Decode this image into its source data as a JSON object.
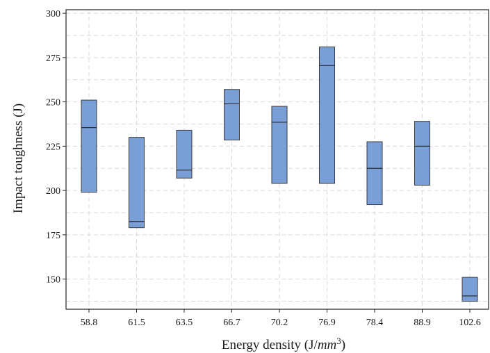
{
  "chart_data": {
    "type": "box",
    "xlabel": "Energy density (J/",
    "xlabel_unit": "mm",
    "xlabel_exp": "3",
    "xlabel_close": ")",
    "ylabel": "Impact toughness (J)",
    "ylim": [
      133,
      302
    ],
    "yticks": [
      150,
      175,
      200,
      225,
      250,
      275,
      300
    ],
    "grid": true,
    "colors": {
      "box_fill": "#7a9fd6",
      "box_stroke": "#3b3b3b"
    },
    "categories": [
      "58.8",
      "61.5",
      "63.5",
      "66.7",
      "70.2",
      "76.9",
      "78.4",
      "88.9",
      "102.6"
    ],
    "boxes": [
      {
        "category": "58.8",
        "low": 199,
        "median": 235.5,
        "high": 251
      },
      {
        "category": "61.5",
        "low": 179,
        "median": 182.5,
        "high": 230
      },
      {
        "category": "63.5",
        "low": 207,
        "median": 211.5,
        "high": 234
      },
      {
        "category": "66.7",
        "low": 228.5,
        "median": 249,
        "high": 257
      },
      {
        "category": "70.2",
        "low": 204,
        "median": 238.5,
        "high": 247.5
      },
      {
        "category": "76.9",
        "low": 204,
        "median": 270.5,
        "high": 281
      },
      {
        "category": "78.4",
        "low": 192,
        "median": 212.5,
        "high": 227.5
      },
      {
        "category": "88.9",
        "low": 203,
        "median": 225,
        "high": 239
      },
      {
        "category": "102.6",
        "low": 137.5,
        "median": 140.5,
        "high": 151
      }
    ]
  }
}
